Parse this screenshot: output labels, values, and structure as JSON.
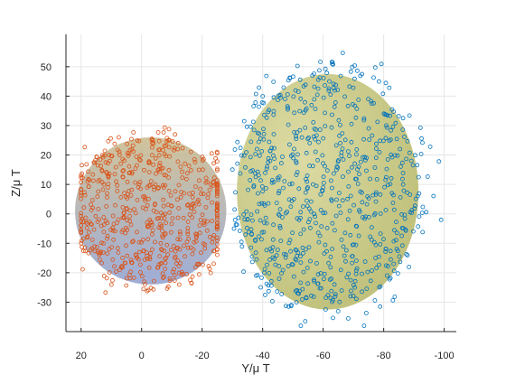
{
  "chart_data": {
    "type": "scatter",
    "title": "",
    "xlabel": "Y/μ T",
    "ylabel": "Z/μ T",
    "x_reversed": true,
    "xlim": [
      25,
      -104
    ],
    "ylim": [
      -40,
      61
    ],
    "xticks": [
      20,
      0,
      -20,
      -40,
      -60,
      -80,
      -100
    ],
    "xtick_labels": [
      "20",
      "0",
      "-20",
      "-40",
      "-60",
      "-80",
      "-100"
    ],
    "yticks": [
      -30,
      -20,
      -10,
      0,
      10,
      20,
      30,
      40,
      50
    ],
    "ytick_labels": [
      "-30",
      "-20",
      "-10",
      "0",
      "10",
      "20",
      "30",
      "40",
      "50"
    ],
    "grid": true,
    "legend": "none",
    "series": [
      {
        "color": "#D95319",
        "marker": "open-circle",
        "point_count": 600,
        "center": [
          1,
          2.5
        ],
        "spread_x": [
          -25,
          20
        ],
        "spread_y": [
          -31,
          32
        ],
        "fitted_ellipse": {
          "center": [
            -3,
            1
          ],
          "radius_x": 25,
          "radius_y": 25
        }
      },
      {
        "color": "#0072BD",
        "marker": "open-circle",
        "point_count": 700,
        "center": [
          -62,
          8
        ],
        "spread_x": [
          -30,
          -104
        ],
        "spread_y": [
          -38,
          61
        ],
        "fitted_ellipse": {
          "center": [
            -61.5,
            7.5
          ],
          "radius_x": 30,
          "radius_y": 40
        }
      }
    ],
    "colors": {
      "ellipse_left_top": "#c9b98a",
      "ellipse_left_bottom": "#8e9fd0",
      "ellipse_right_fill": "#c9c67a",
      "ellipse_right_edge": "#a6a95e",
      "grid": "#e6e6e6",
      "axis": "#262626"
    }
  }
}
